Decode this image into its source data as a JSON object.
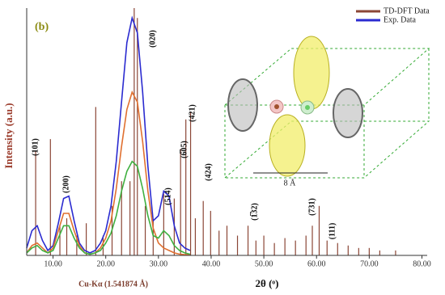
{
  "chart_data": {
    "type": "xrd",
    "panel_label": "(b)",
    "ylabel": "Intensity (a.u.)",
    "xlabel": "2θ (ᵒ)",
    "xlabel_note": "Cu-Kα (1.541874 Å)",
    "inset_scale": "8 Å",
    "xlim": [
      5,
      81
    ],
    "ylim": [
      0,
      100
    ],
    "xticks": [
      {
        "value": 10,
        "label": "10.00"
      },
      {
        "value": 20,
        "label": "20.00"
      },
      {
        "value": 30,
        "label": "30.00"
      },
      {
        "value": 40,
        "label": "40.00"
      },
      {
        "value": 50,
        "label": "50.00"
      },
      {
        "value": 60,
        "label": "60.00"
      },
      {
        "value": 70,
        "label": "70.00"
      },
      {
        "value": 80,
        "label": "80.00"
      }
    ],
    "annotations": [
      "(101)",
      "(200)",
      "(020)",
      "(514)",
      "(421)",
      "(6̅05)",
      "(424)",
      "(1̅32)",
      "(731)",
      "(111)"
    ],
    "x": [
      5,
      6,
      7,
      8,
      9,
      10,
      11,
      12,
      13,
      14,
      15,
      16,
      17,
      18,
      19,
      20,
      21,
      22,
      23,
      24,
      25,
      26,
      27,
      28,
      29,
      30,
      31,
      32,
      33,
      34,
      35,
      36
    ],
    "series": [
      {
        "name": "TD-DFT Data",
        "color": "#8b4636",
        "type": "stick",
        "x": [
          6.7,
          9.5,
          11.3,
          12.6,
          14.5,
          16.3,
          18.1,
          19.5,
          21.2,
          23.0,
          24.6,
          25.4,
          26.0,
          27.5,
          29.0,
          31.0,
          33.0,
          34.2,
          35.2,
          36.1,
          37.0,
          38.5,
          39.9,
          41.5,
          43.0,
          45.0,
          47.0,
          48.5,
          50.0,
          52.0,
          54.0,
          56.0,
          58.0,
          59.2,
          60.5,
          62.0,
          64.0,
          66.0,
          68.0,
          70.0,
          72.0,
          75.0
        ],
        "values": [
          42,
          47,
          12,
          15,
          8,
          13,
          60,
          8,
          20,
          30,
          30,
          100,
          96,
          20,
          14,
          25,
          23,
          43,
          55,
          58,
          15,
          22,
          18,
          10,
          12,
          8,
          12,
          6,
          8,
          5,
          7,
          6,
          8,
          12,
          20,
          6,
          5,
          4,
          3,
          3,
          2,
          2
        ]
      },
      {
        "name": "Exp. Data",
        "color": "#2b2bd0",
        "values": [
          3,
          10,
          12,
          6,
          2,
          4,
          13,
          23,
          24,
          14,
          5,
          2,
          1,
          2,
          5,
          10,
          20,
          38,
          62,
          86,
          96,
          90,
          66,
          36,
          14,
          16,
          26,
          24,
          12,
          5,
          3,
          2
        ]
      },
      {
        "color": "#e07030",
        "values": [
          1,
          4,
          5,
          3,
          1,
          3,
          10,
          17,
          17,
          10,
          4,
          1,
          0.5,
          1,
          3,
          7,
          14,
          27,
          44,
          59,
          66,
          62,
          46,
          26,
          11,
          5,
          3,
          2,
          1,
          0.5,
          0.3,
          0.2
        ]
      },
      {
        "color": "#3fb040",
        "values": [
          1,
          3,
          4,
          2,
          1,
          2,
          7,
          12,
          12,
          7,
          3,
          1,
          0.5,
          1,
          2,
          5,
          9,
          16,
          26,
          34,
          38,
          36,
          27,
          16,
          8,
          7,
          10,
          8,
          4,
          2,
          1,
          0.5
        ]
      }
    ]
  }
}
